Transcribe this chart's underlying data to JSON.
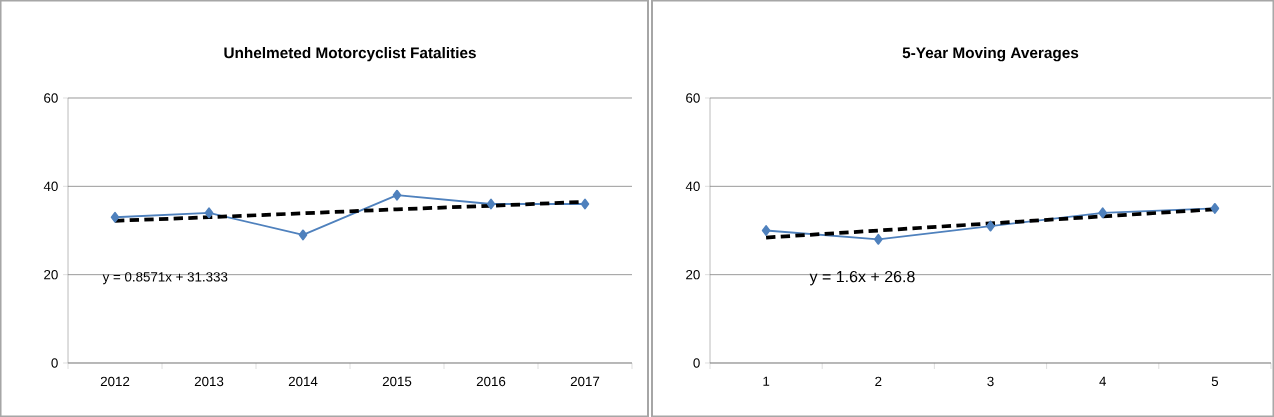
{
  "chart_data": [
    {
      "type": "line",
      "title": "Unhelmeted Motorcyclist Fatalities",
      "categories": [
        "2012",
        "2013",
        "2014",
        "2015",
        "2016",
        "2017"
      ],
      "ylim": [
        0,
        60
      ],
      "yticks": [
        0,
        20,
        40,
        60
      ],
      "grid": "y",
      "annotations": [
        "y = 0.8571x + 31.333"
      ],
      "series": [
        {
          "color": "#4f81bd",
          "marker": "diamond",
          "line_style": "solid",
          "values": [
            33,
            34,
            29,
            38,
            36,
            36
          ]
        },
        {
          "color": "#000000",
          "marker": "none",
          "line_style": "dashed",
          "values": [
            32.2,
            33.0,
            33.9,
            34.8,
            35.6,
            36.5
          ]
        }
      ]
    },
    {
      "type": "line",
      "title": "5-Year Moving Averages",
      "categories": [
        "1",
        "2",
        "3",
        "4",
        "5"
      ],
      "ylim": [
        0,
        60
      ],
      "yticks": [
        0,
        20,
        40,
        60
      ],
      "grid": "y",
      "annotations": [
        "y = 1.6x + 26.8"
      ],
      "series": [
        {
          "color": "#4f81bd",
          "marker": "diamond",
          "line_style": "solid",
          "values": [
            30,
            28,
            31,
            34,
            35
          ]
        },
        {
          "color": "#000000",
          "marker": "none",
          "line_style": "dashed",
          "values": [
            28.4,
            30.0,
            31.6,
            33.2,
            34.8
          ]
        }
      ]
    }
  ]
}
